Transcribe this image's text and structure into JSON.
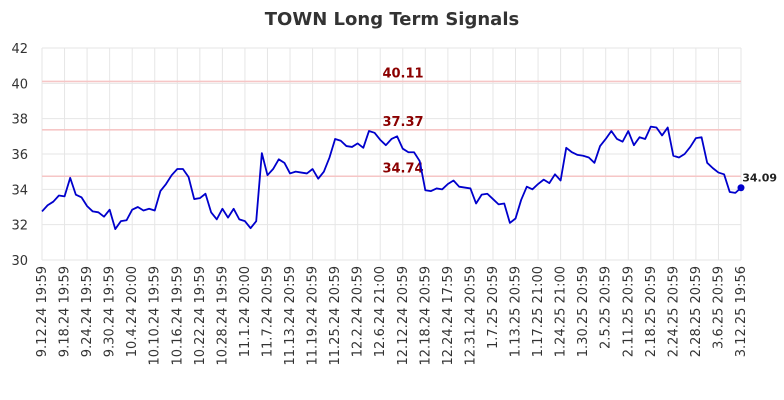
{
  "chart_data": {
    "type": "line",
    "title": "TOWN Long Term Signals",
    "ylim": [
      30,
      42
    ],
    "yticks": [
      "30",
      "32",
      "34",
      "36",
      "38",
      "40",
      "42"
    ],
    "xlabels": [
      "9.12.24 19:59",
      "9.18.24 19:59",
      "9.24.24 19:59",
      "9.30.24 19:59",
      "10.4.24 20:00",
      "10.10.24 19:59",
      "10.16.24 19:59",
      "10.22.24 19:59",
      "10.28.24 19:59",
      "11.1.24 20:00",
      "11.7.24 20:59",
      "11.13.24 20:59",
      "11.19.24 20:59",
      "11.25.24 20:59",
      "12.2.24 20:59",
      "12.6.24 21:00",
      "12.12.24 20:59",
      "12.18.24 20:59",
      "12.24.24 17:59",
      "12.31.24 20:59",
      "1.7.25 20:59",
      "1.13.25 20:59",
      "1.17.25 21:00",
      "1.24.25 21:00",
      "1.30.25 20:59",
      "2.5.25 20:59",
      "2.11.25 20:59",
      "2.18.25 20:59",
      "2.24.25 20:59",
      "2.28.25 20:59",
      "3.6.25 20:59",
      "3.12.25 19:56"
    ],
    "hlines": [
      {
        "value": 40.11,
        "label": "40.11"
      },
      {
        "value": 37.37,
        "label": "37.37"
      },
      {
        "value": 34.74,
        "label": "34.74"
      }
    ],
    "last_label": "34.09",
    "series": [
      {
        "color": "#0000cc",
        "values": [
          32.75,
          33.1,
          33.3,
          33.65,
          33.6,
          34.65,
          33.7,
          33.55,
          33.05,
          32.75,
          32.7,
          32.45,
          32.85,
          31.75,
          32.2,
          32.25,
          32.85,
          33.0,
          32.8,
          32.9,
          32.8,
          33.9,
          34.3,
          34.8,
          35.15,
          35.15,
          34.7,
          33.45,
          33.5,
          33.75,
          32.7,
          32.3,
          32.9,
          32.4,
          32.9,
          32.3,
          32.2,
          31.8,
          32.2,
          36.05,
          34.8,
          35.15,
          35.7,
          35.5,
          34.9,
          35.0,
          34.95,
          34.9,
          35.15,
          34.6,
          35.0,
          35.8,
          36.85,
          36.75,
          36.45,
          36.4,
          36.6,
          36.35,
          37.3,
          37.2,
          36.8,
          36.5,
          36.85,
          37.0,
          36.3,
          36.1,
          36.1,
          35.6,
          33.95,
          33.9,
          34.05,
          34.0,
          34.3,
          34.5,
          34.15,
          34.1,
          34.05,
          33.2,
          33.7,
          33.75,
          33.45,
          33.15,
          33.2,
          32.1,
          32.35,
          33.4,
          34.15,
          34.0,
          34.3,
          34.55,
          34.35,
          34.85,
          34.5,
          36.35,
          36.1,
          35.95,
          35.9,
          35.8,
          35.5,
          36.45,
          36.85,
          37.3,
          36.85,
          36.7,
          37.3,
          36.5,
          36.95,
          36.85,
          37.55,
          37.5,
          37.05,
          37.5,
          35.9,
          35.8,
          36.0,
          36.4,
          36.9,
          36.95,
          35.5,
          35.2,
          34.95,
          34.85,
          33.85,
          33.8,
          34.09
        ]
      }
    ]
  }
}
